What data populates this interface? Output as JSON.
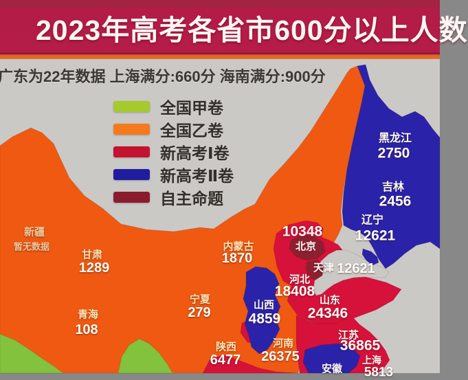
{
  "header": {
    "title": "2023年高考各省市600分以上人数",
    "subtitle": "广东为22年数据  上海满分:660分  海南满分:900分"
  },
  "legend": {
    "items": [
      {
        "label": "全国甲卷",
        "color": "#a6c92f"
      },
      {
        "label": "全国乙卷",
        "color": "#f57a1e"
      },
      {
        "label": "新高考Ⅰ卷",
        "color": "#c41231"
      },
      {
        "label": "新高考Ⅱ卷",
        "color": "#211d9f"
      },
      {
        "label": "自主命题",
        "color": "#8b1c2d"
      }
    ]
  },
  "colors": {
    "orange": "#ef5912",
    "green": "#82c23d",
    "blue": "#2a23a9",
    "red": "#d6113a",
    "maroon": "#8e1f31",
    "sea": "#cbc9c6"
  },
  "provinces": [
    {
      "name": "新疆",
      "value": "暂无数据",
      "nx": 50,
      "ny": 338,
      "nfs": 15,
      "vx": 46,
      "vy": 359,
      "vfs": 13,
      "tone": "tone-faded",
      "vtone": "tone-faded"
    },
    {
      "name": "甘肃",
      "value": "1289",
      "nx": 134,
      "ny": 371,
      "nfs": 15,
      "vx": 137,
      "vy": 390,
      "vfs": 20,
      "tone": "tone-cream",
      "vtone": "tone-white"
    },
    {
      "name": "青海",
      "value": "108",
      "nx": 128,
      "ny": 458,
      "nfs": 15,
      "vx": 126,
      "vy": 480,
      "vfs": 20,
      "tone": "tone-cream",
      "vtone": "tone-white"
    },
    {
      "name": "宁夏",
      "value": "279",
      "nx": 291,
      "ny": 436,
      "nfs": 15,
      "vx": 290,
      "vy": 455,
      "vfs": 20,
      "tone": "tone-cream",
      "vtone": "tone-white"
    },
    {
      "name": "内蒙古",
      "value": "1870",
      "nx": 347,
      "ny": 359,
      "nfs": 15,
      "vx": 345,
      "vy": 376,
      "vfs": 20,
      "tone": "tone-cream",
      "vtone": "tone-white"
    },
    {
      "name": "陕西",
      "value": "6477",
      "nx": 329,
      "ny": 505,
      "nfs": 15,
      "vx": 328,
      "vy": 524,
      "vfs": 20,
      "tone": "tone-cream",
      "vtone": "tone-white"
    },
    {
      "name": "河南",
      "value": "26375",
      "nx": 412,
      "ny": 500,
      "nfs": 15,
      "vx": 408,
      "vy": 519,
      "vfs": 20,
      "tone": "tone-cream",
      "vtone": "tone-white"
    },
    {
      "name": "山西",
      "value": "4859",
      "nx": 384,
      "ny": 444,
      "nfs": 15,
      "vx": 385,
      "vy": 464,
      "vfs": 21,
      "tone": "tone-white",
      "vtone": "tone-white"
    },
    {
      "name": "北京",
      "value": "10348",
      "nx": 445,
      "ny": 359,
      "nfs": 15,
      "vx": 440,
      "vy": 337,
      "vfs": 21,
      "tone": "tone-white",
      "vtone": "tone-white"
    },
    {
      "name": "天津",
      "value": "12621",
      "nx": 471,
      "ny": 390,
      "nfs": 15,
      "vx": 518,
      "vy": 391,
      "vfs": 20,
      "tone": "tone-white",
      "vtone": "tone-white"
    },
    {
      "name": "河北",
      "value": "18408",
      "nx": 436,
      "ny": 407,
      "nfs": 15,
      "vx": 429,
      "vy": 424,
      "vfs": 21,
      "tone": "tone-white",
      "vtone": "tone-white"
    },
    {
      "name": "山东",
      "value": "24346",
      "nx": 480,
      "ny": 437,
      "nfs": 15,
      "vx": 477,
      "vy": 456,
      "vfs": 21,
      "tone": "tone-white",
      "vtone": "tone-white"
    },
    {
      "name": "江苏",
      "value": "36865",
      "nx": 507,
      "ny": 488,
      "nfs": 15,
      "vx": 524,
      "vy": 503,
      "vfs": 21,
      "tone": "tone-white",
      "vtone": "tone-white"
    },
    {
      "name": "安徽",
      "value": null,
      "nx": 483,
      "ny": 537,
      "nfs": 15,
      "tone": "tone-white"
    },
    {
      "name": "上海",
      "value": "5813",
      "nx": 541,
      "ny": 524,
      "nfs": 14,
      "vx": 551,
      "vy": 542,
      "vfs": 19,
      "tone": "tone-white",
      "vtone": "tone-white"
    },
    {
      "name": "黑龙江",
      "value": "2750",
      "nx": 575,
      "ny": 202,
      "nfs": 16,
      "vx": 573,
      "vy": 223,
      "vfs": 21,
      "tone": "tone-white",
      "vtone": "tone-white"
    },
    {
      "name": "吉林",
      "value": "2456",
      "nx": 572,
      "ny": 273,
      "nfs": 16,
      "vx": 575,
      "vy": 293,
      "vfs": 21,
      "tone": "tone-white",
      "vtone": "tone-white"
    },
    {
      "name": "辽宁",
      "value": "12621",
      "nx": 542,
      "ny": 321,
      "nfs": 16,
      "vx": 546,
      "vy": 343,
      "vfs": 21,
      "tone": "tone-white",
      "vtone": "tone-white"
    }
  ]
}
